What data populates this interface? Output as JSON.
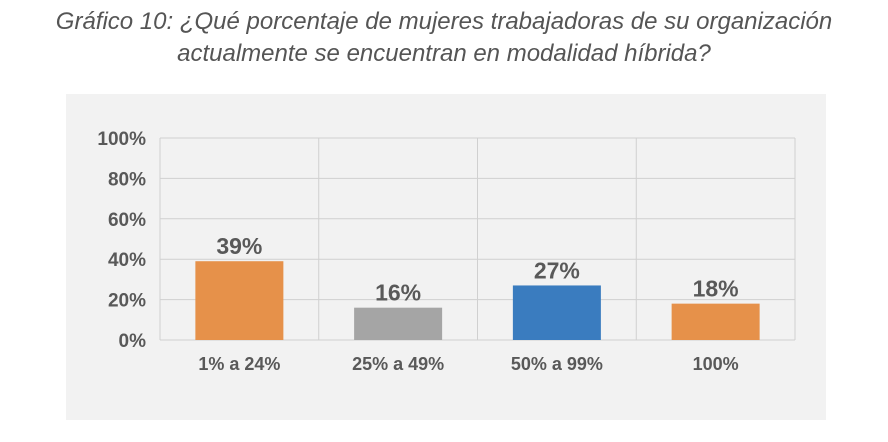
{
  "title": {
    "line1": "Gráfico 10: ¿Qué porcentaje de mujeres trabajadoras de su organización",
    "line2": "actualmente se encuentran en modalidad híbrida?"
  },
  "chart_data": {
    "type": "bar",
    "categories": [
      "1% a 24%",
      "25% a 49%",
      "50% a 99%",
      "100%"
    ],
    "values": [
      39,
      16,
      27,
      18
    ],
    "data_labels": [
      "39%",
      "16%",
      "27%",
      "18%"
    ],
    "bar_colors": [
      "#e6914a",
      "#a5a5a5",
      "#3a7cbf",
      "#e6914a"
    ],
    "ylim": [
      0,
      100
    ],
    "yticks": [
      0,
      20,
      40,
      60,
      80,
      100
    ],
    "ytick_labels": [
      "0%",
      "20%",
      "40%",
      "60%",
      "80%",
      "100%"
    ],
    "grid": true,
    "background": "#f2f2f2"
  }
}
